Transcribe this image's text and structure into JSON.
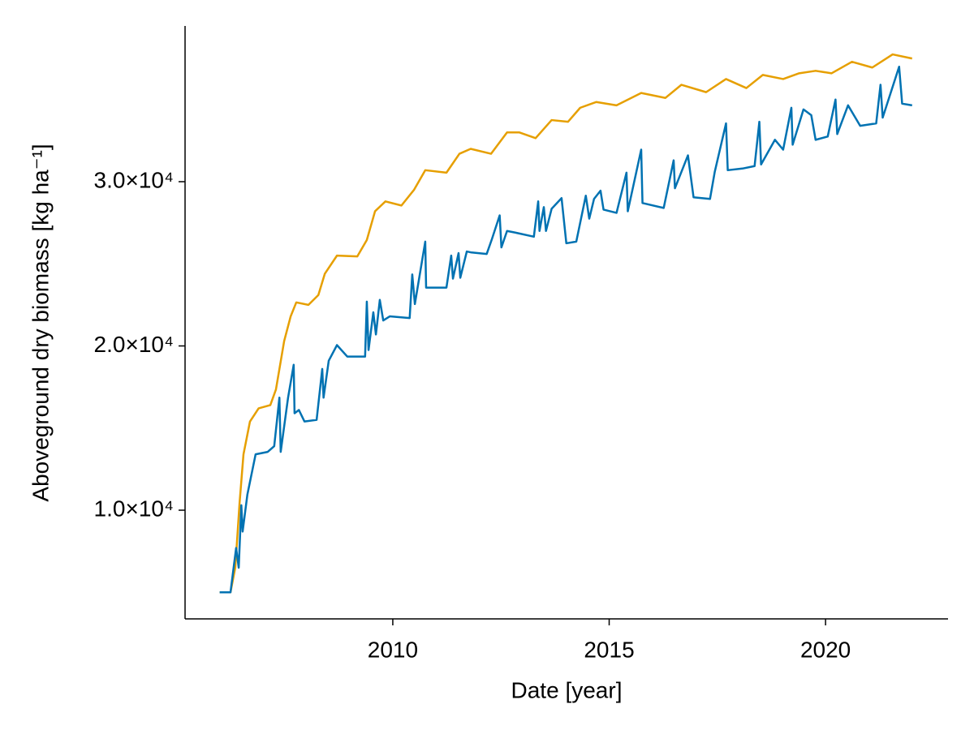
{
  "chart_data": {
    "type": "line",
    "xlabel": "Date [year]",
    "ylabel": "Aboveground dry biomass [kg ha⁻¹]",
    "xlim": [
      2005.2,
      2022.83
    ],
    "xticks": [
      2010,
      2015,
      2020
    ],
    "ylim": [
      3383,
      39481
    ],
    "yticks": [
      {
        "value": 10000,
        "label": "1.0×10⁴"
      },
      {
        "value": 20000,
        "label": "2.0×10⁴"
      },
      {
        "value": 30000,
        "label": "3.0×10⁴"
      }
    ],
    "grid": false,
    "series": [
      {
        "color": "#e69f00",
        "x": [
          2006.0,
          2006.25,
          2006.36,
          2006.46,
          2006.55,
          2006.7,
          2006.9,
          2007.17,
          2007.3,
          2007.49,
          2007.64,
          2007.77,
          2008.05,
          2008.28,
          2008.43,
          2008.71,
          2009.18,
          2009.4,
          2009.59,
          2009.83,
          2010.2,
          2010.49,
          2010.75,
          2011.24,
          2011.54,
          2011.8,
          2012.27,
          2012.64,
          2012.92,
          2013.3,
          2013.67,
          2014.05,
          2014.33,
          2014.7,
          2015.17,
          2015.74,
          2016.3,
          2016.67,
          2017.24,
          2017.7,
          2018.17,
          2018.55,
          2019.02,
          2019.39,
          2019.77,
          2020.14,
          2020.61,
          2021.08,
          2021.55,
          2022.0
        ],
        "values": [
          5000,
          5000,
          6500,
          10450,
          13400,
          15400,
          16200,
          16400,
          17350,
          20300,
          21800,
          22650,
          22500,
          23100,
          24400,
          25500,
          25450,
          26450,
          28200,
          28800,
          28550,
          29500,
          30700,
          30550,
          31700,
          32000,
          31700,
          33000,
          33000,
          32650,
          33750,
          33650,
          34500,
          34850,
          34650,
          35400,
          35100,
          35900,
          35450,
          36250,
          35700,
          36500,
          36250,
          36600,
          36750,
          36600,
          37300,
          36950,
          37750,
          37500
        ]
      },
      {
        "color": "#0072b2",
        "x": [
          2006.0,
          2006.25,
          2006.38,
          2006.44,
          2006.5,
          2006.53,
          2006.64,
          2006.83,
          2007.11,
          2007.26,
          2007.38,
          2007.41,
          2007.58,
          2007.71,
          2007.73,
          2007.83,
          2007.96,
          2008.24,
          2008.37,
          2008.4,
          2008.52,
          2008.71,
          2008.95,
          2009.36,
          2009.4,
          2009.44,
          2009.55,
          2009.61,
          2009.7,
          2009.78,
          2009.93,
          2010.39,
          2010.45,
          2010.51,
          2010.75,
          2010.77,
          2011.24,
          2011.35,
          2011.39,
          2011.52,
          2011.56,
          2011.71,
          2011.8,
          2012.17,
          2012.29,
          2012.47,
          2012.51,
          2012.64,
          2012.83,
          2013.26,
          2013.36,
          2013.39,
          2013.49,
          2013.54,
          2013.67,
          2013.9,
          2014.01,
          2014.24,
          2014.46,
          2014.54,
          2014.65,
          2014.8,
          2014.87,
          2015.17,
          2015.4,
          2015.43,
          2015.74,
          2015.77,
          2016.26,
          2016.49,
          2016.52,
          2016.82,
          2016.95,
          2017.33,
          2017.44,
          2017.7,
          2017.74,
          2018.08,
          2018.36,
          2018.47,
          2018.51,
          2018.83,
          2019.02,
          2019.21,
          2019.24,
          2019.49,
          2019.67,
          2019.77,
          2020.05,
          2020.23,
          2020.27,
          2020.52,
          2020.8,
          2021.17,
          2021.27,
          2021.32,
          2021.7,
          2021.77,
          2022.0
        ],
        "values": [
          5000,
          5000,
          7700,
          6500,
          10300,
          8700,
          10950,
          13400,
          13550,
          13900,
          16850,
          13550,
          16850,
          18850,
          15900,
          16100,
          15400,
          15500,
          18600,
          16850,
          19100,
          20050,
          19350,
          19350,
          22700,
          19750,
          22050,
          20700,
          22800,
          21550,
          21800,
          21700,
          24350,
          22550,
          26350,
          23550,
          23550,
          25500,
          24100,
          25650,
          24150,
          25750,
          25700,
          25600,
          26500,
          27950,
          26000,
          27000,
          26900,
          26650,
          28800,
          27000,
          28450,
          27000,
          28350,
          29000,
          26250,
          26350,
          29150,
          27750,
          28950,
          29450,
          28300,
          28100,
          30550,
          28200,
          31950,
          28700,
          28400,
          31300,
          29600,
          31600,
          29050,
          28950,
          30600,
          33550,
          30700,
          30800,
          30950,
          33650,
          31050,
          32550,
          31950,
          34500,
          32250,
          34400,
          34050,
          32550,
          32750,
          35000,
          32900,
          34650,
          33400,
          33550,
          35900,
          33900,
          37000,
          34750,
          34650
        ]
      }
    ]
  }
}
